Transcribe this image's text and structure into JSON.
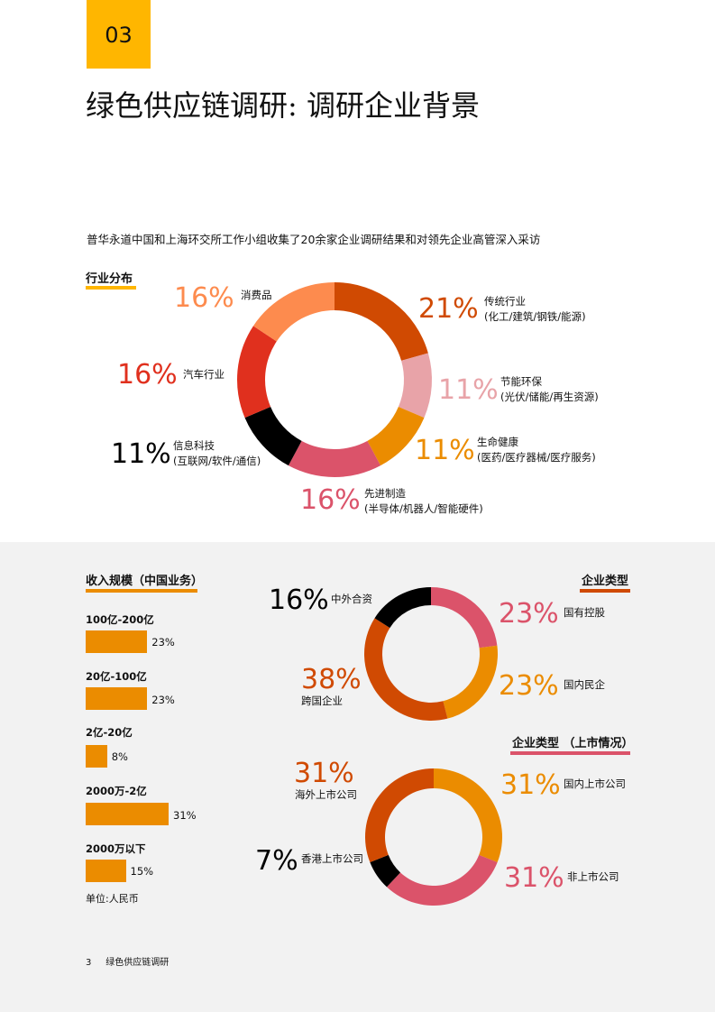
{
  "header": {
    "section_number": "03",
    "title": "绿色供应链调研: 调研企业背景"
  },
  "intro_text": "普华永道中国和上海环交所工作小组收集了20余家企业调研结果和对领先企业高管深入采访",
  "footer": {
    "page_number": "3",
    "doc_title": "绿色供应链调研"
  },
  "unit_note": "单位:人民币",
  "chart_data": [
    {
      "type": "pie",
      "title": "行业分布",
      "slices": [
        {
          "pct_label": "21%",
          "value": 21,
          "label": "传统行业",
          "sublabel": "(化工/建筑/钢铁/能源)",
          "color": "#D04A02"
        },
        {
          "pct_label": "11%",
          "value": 11,
          "label": "节能环保",
          "sublabel": "(光伏/储能/再生资源)",
          "color": "#E8A3A8"
        },
        {
          "pct_label": "11%",
          "value": 11,
          "label": "生命健康",
          "sublabel": "(医药/医疗器械/医疗服务)",
          "color": "#EB8C00"
        },
        {
          "pct_label": "16%",
          "value": 16,
          "label": "先进制造",
          "sublabel": "(半导体/机器人/智能硬件)",
          "color": "#DB536A"
        },
        {
          "pct_label": "11%",
          "value": 11,
          "label": "信息科技",
          "sublabel": "(互联网/软件/通信)",
          "color": "#000000"
        },
        {
          "pct_label": "16%",
          "value": 16,
          "label": "汽车行业",
          "sublabel": "",
          "color": "#E0301E"
        },
        {
          "pct_label": "16%",
          "value": 16,
          "label": "消费品",
          "sublabel": "",
          "color": "#FD8B4E"
        }
      ]
    },
    {
      "type": "bar",
      "title": "收入规模（中国业务）",
      "categories": [
        "100亿-200亿",
        "20亿-100亿",
        "2亿-20亿",
        "2000万-2亿",
        "2000万以下"
      ],
      "values": [
        23,
        23,
        8,
        31,
        15
      ],
      "value_labels": [
        "23%",
        "23%",
        "8%",
        "31%",
        "15%"
      ],
      "color": "#EB8C00"
    },
    {
      "type": "pie",
      "title": "企业类型",
      "slices": [
        {
          "pct_label": "23%",
          "value": 23,
          "label": "国有控股",
          "color": "#DB536A"
        },
        {
          "pct_label": "23%",
          "value": 23,
          "label": "国内民企",
          "color": "#EB8C00"
        },
        {
          "pct_label": "38%",
          "value": 38,
          "label": "跨国企业",
          "color": "#D04A02"
        },
        {
          "pct_label": "16%",
          "value": 16,
          "label": "中外合资",
          "color": "#000000"
        }
      ]
    },
    {
      "type": "pie",
      "title": "企业类型 （上市情况）",
      "slices": [
        {
          "pct_label": "31%",
          "value": 31,
          "label": "国内上市公司",
          "color": "#EB8C00"
        },
        {
          "pct_label": "31%",
          "value": 31,
          "label": "非上市公司",
          "color": "#DB536A"
        },
        {
          "pct_label": "7%",
          "value": 7,
          "label": "香港上市公司",
          "color": "#000000"
        },
        {
          "pct_label": "31%",
          "value": 31,
          "label": "海外上市公司",
          "color": "#D04A02"
        }
      ]
    }
  ]
}
